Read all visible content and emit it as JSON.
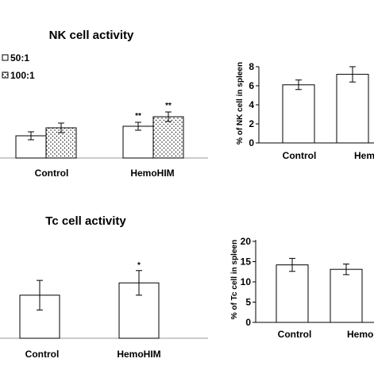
{
  "chart_data": [
    {
      "type": "bar",
      "title": "NK cell activity",
      "categories": [
        "Control",
        "HemoHIM"
      ],
      "series": [
        {
          "name": "50:1",
          "pattern": "plain",
          "values": [
            28,
            40
          ],
          "errors": [
            5,
            5
          ]
        },
        {
          "name": "100:1",
          "pattern": "dots",
          "values": [
            38,
            52
          ],
          "errors": [
            6,
            6
          ]
        }
      ],
      "annotations": [
        {
          "category": "HemoHIM",
          "series": "50:1",
          "text": "**"
        },
        {
          "category": "HemoHIM",
          "series": "100:1",
          "text": "**"
        }
      ],
      "legend": "top-left",
      "xlabel": "",
      "ylabel": "",
      "ylim": [
        0,
        100
      ]
    },
    {
      "type": "bar",
      "title": "",
      "categories": [
        "Control",
        "Hemo"
      ],
      "values": [
        6.1,
        7.2
      ],
      "errors": [
        0.5,
        0.8
      ],
      "ylabel": "% of NK cell in spleen",
      "yticks": [
        0,
        2,
        4,
        6,
        8
      ],
      "ylim": [
        0,
        8
      ]
    },
    {
      "type": "bar",
      "title": "Tc cell activity",
      "categories": [
        "Control",
        "HemoHIM"
      ],
      "values": [
        35,
        45
      ],
      "errors": [
        12,
        10
      ],
      "annotations": [
        {
          "category": "HemoHIM",
          "text": "*"
        }
      ],
      "xlabel": "",
      "ylabel": "",
      "ylim": [
        0,
        75
      ]
    },
    {
      "type": "bar",
      "title": "",
      "categories": [
        "Control",
        "Hemo"
      ],
      "values": [
        14.2,
        13.1
      ],
      "errors": [
        1.6,
        1.3
      ],
      "ylabel": "% of Tc cell in spleen",
      "yticks": [
        0,
        5,
        10,
        15,
        20
      ],
      "ylim": [
        0,
        20
      ]
    }
  ],
  "colors": {
    "bar_fill": "#ffffff",
    "stroke": "#000000",
    "axis": "#999999"
  }
}
